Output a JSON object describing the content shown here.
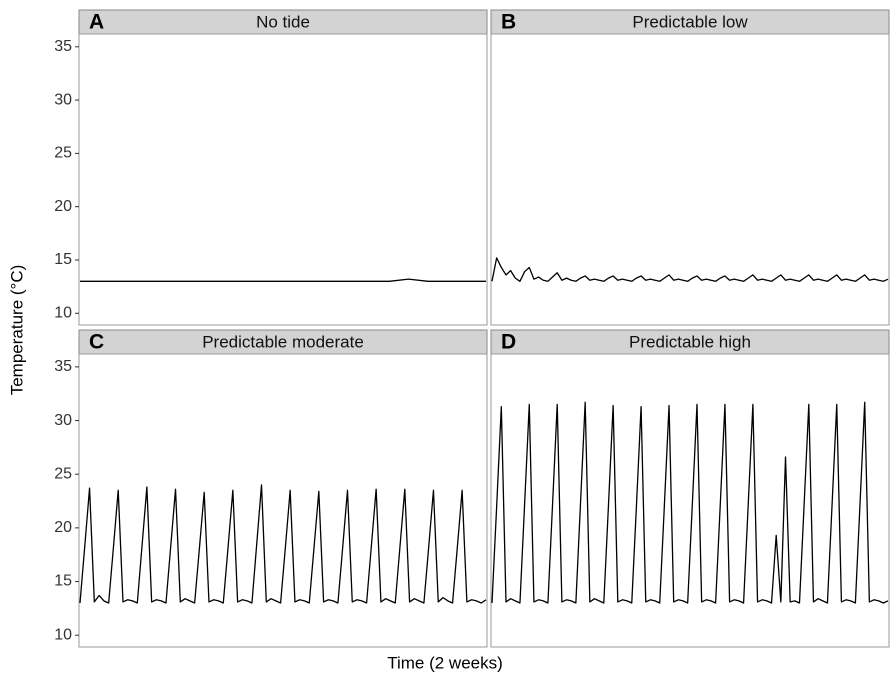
{
  "x_label": "Time (2 weeks)",
  "y_label": "Temperature (°C)",
  "chart_data": [
    {
      "type": "line",
      "panel": "A",
      "title": "No tide",
      "color": "#000000",
      "ylim": [
        8.9,
        36.2
      ],
      "yticks": [
        10,
        15,
        20,
        25,
        30,
        35
      ],
      "values": [
        13.0,
        13.0,
        13.0,
        13.0,
        13.0,
        13.0,
        13.0,
        13.0,
        13.0,
        13.0,
        13.0,
        13.0,
        13.0,
        13.0,
        13.0,
        13.0,
        13.0,
        13.2,
        13.0,
        13.0,
        13.0,
        13.0
      ]
    },
    {
      "type": "line",
      "panel": "B",
      "title": "Predictable low",
      "color": "#000000",
      "ylim": [
        8.9,
        36.2
      ],
      "yticks": [
        10,
        15,
        20,
        25,
        30,
        35
      ],
      "values": [
        13.0,
        15.2,
        14.3,
        13.6,
        14.0,
        13.3,
        13.0,
        13.9,
        14.3,
        13.2,
        13.4,
        13.1,
        13.0,
        13.4,
        13.8,
        13.1,
        13.3,
        13.1,
        13.0,
        13.3,
        13.5,
        13.1,
        13.2,
        13.1,
        13.0,
        13.3,
        13.5,
        13.1,
        13.2,
        13.1,
        13.0,
        13.3,
        13.5,
        13.1,
        13.2,
        13.1,
        13.0,
        13.3,
        13.6,
        13.1,
        13.2,
        13.1,
        13.0,
        13.3,
        13.5,
        13.1,
        13.2,
        13.1,
        13.0,
        13.3,
        13.5,
        13.1,
        13.2,
        13.1,
        13.0,
        13.3,
        13.6,
        13.1,
        13.2,
        13.1,
        13.0,
        13.3,
        13.6,
        13.1,
        13.2,
        13.1,
        13.0,
        13.3,
        13.6,
        13.1,
        13.2,
        13.1,
        13.0,
        13.3,
        13.6,
        13.1,
        13.2,
        13.1,
        13.0,
        13.3,
        13.6,
        13.1,
        13.2,
        13.1,
        13.0,
        13.2
      ]
    },
    {
      "type": "line",
      "panel": "C",
      "title": "Predictable moderate",
      "color": "#000000",
      "ylim": [
        8.9,
        36.2
      ],
      "yticks": [
        10,
        15,
        20,
        25,
        30,
        35
      ],
      "values": [
        13.0,
        18.3,
        23.7,
        13.1,
        13.7,
        13.2,
        13.0,
        18.2,
        23.5,
        13.1,
        13.3,
        13.2,
        13.0,
        18.4,
        23.8,
        13.1,
        13.3,
        13.2,
        13.0,
        18.3,
        23.6,
        13.1,
        13.4,
        13.2,
        13.0,
        18.1,
        23.3,
        13.1,
        13.3,
        13.2,
        13.0,
        18.2,
        23.5,
        13.1,
        13.3,
        13.2,
        13.0,
        18.5,
        24.0,
        13.1,
        13.4,
        13.2,
        13.0,
        18.2,
        23.5,
        13.1,
        13.3,
        13.2,
        13.0,
        18.2,
        23.4,
        13.1,
        13.3,
        13.2,
        13.0,
        18.2,
        23.5,
        13.1,
        13.3,
        13.2,
        13.0,
        18.3,
        23.6,
        13.1,
        13.4,
        13.2,
        13.0,
        18.3,
        23.6,
        13.1,
        13.4,
        13.2,
        13.0,
        18.2,
        23.5,
        13.1,
        13.5,
        13.2,
        13.0,
        18.2,
        23.5,
        13.1,
        13.3,
        13.2,
        13.0,
        13.3
      ]
    },
    {
      "type": "line",
      "panel": "D",
      "title": "Predictable high",
      "color": "#000000",
      "ylim": [
        8.9,
        36.2
      ],
      "yticks": [
        10,
        15,
        20,
        25,
        30,
        35
      ],
      "values": [
        13.0,
        22.0,
        31.3,
        13.1,
        13.4,
        13.2,
        13.0,
        22.2,
        31.5,
        13.1,
        13.3,
        13.2,
        13.0,
        22.2,
        31.5,
        13.1,
        13.3,
        13.2,
        13.0,
        22.3,
        31.7,
        13.1,
        13.4,
        13.2,
        13.0,
        22.1,
        31.4,
        13.1,
        13.3,
        13.2,
        13.0,
        22.0,
        31.3,
        13.1,
        13.3,
        13.2,
        13.0,
        22.1,
        31.4,
        13.1,
        13.3,
        13.2,
        13.0,
        22.2,
        31.5,
        13.1,
        13.3,
        13.2,
        13.0,
        22.2,
        31.5,
        13.1,
        13.3,
        13.2,
        13.0,
        22.2,
        31.5,
        13.1,
        13.3,
        13.2,
        13.0,
        19.3,
        13.1,
        26.6,
        13.1,
        13.2,
        13.0,
        22.2,
        31.5,
        13.1,
        13.4,
        13.2,
        13.0,
        22.2,
        31.5,
        13.1,
        13.3,
        13.2,
        13.0,
        22.3,
        31.7,
        13.1,
        13.3,
        13.2,
        13.0,
        13.2
      ]
    }
  ]
}
